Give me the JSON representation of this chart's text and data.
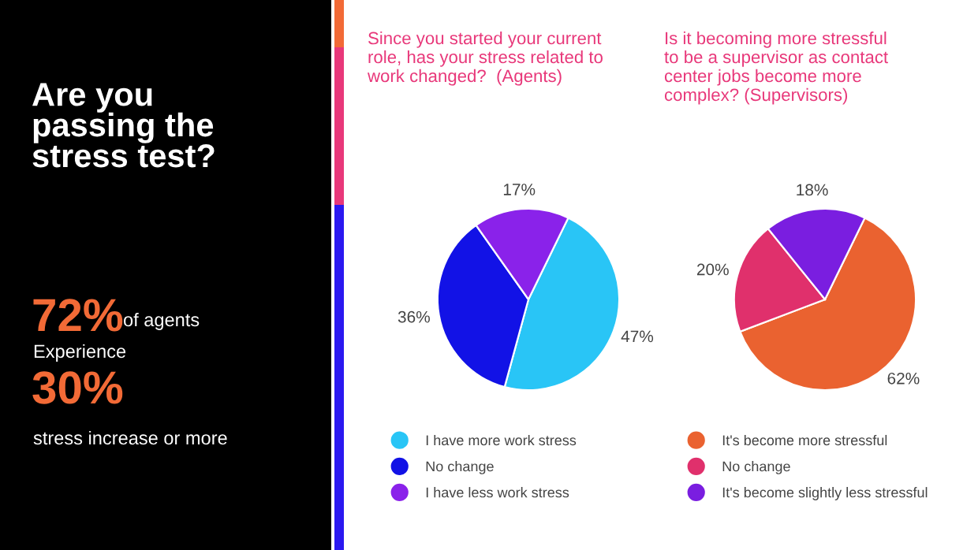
{
  "chart_data": [
    {
      "type": "other",
      "title": "Are you passing the stress test?",
      "annotations": [
        "72%",
        "of agents",
        "Experience",
        "30%",
        "stress increase or more"
      ]
    },
    {
      "type": "pie",
      "title": "Since you started your current role, has your stress related to work changed?  (Agents)",
      "categories": [
        "I have more work stress",
        "No change",
        "I have less work stress"
      ],
      "values": [
        47,
        36,
        17
      ],
      "colors": [
        "#29c5f6",
        "#1212e6",
        "#8a22ea"
      ],
      "value_labels": [
        "47%",
        "36%",
        "17%"
      ],
      "legend": "bottom"
    },
    {
      "type": "pie",
      "title": "Is it becoming more stressful to be a supervisor as contact center jobs become more complex? (Supervisors)",
      "categories": [
        "It's become more stressful",
        "No change",
        "It's become slightly less stressful"
      ],
      "values": [
        62,
        20,
        18
      ],
      "colors": [
        "#ea6230",
        "#e0306c",
        "#7a1ee0"
      ],
      "value_labels": [
        "62%",
        "20%",
        "18%"
      ],
      "legend": "bottom"
    }
  ]
}
